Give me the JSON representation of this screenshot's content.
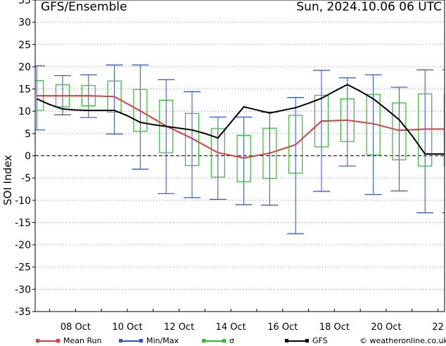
{
  "header": {
    "title": "GFS/Ensemble",
    "datetime": "Sun, 2024.10.06 06 UTC"
  },
  "colors": {
    "mean": "#e03c3c",
    "minmax": "#2a4fd6",
    "sigma": "#2ec02e",
    "gfs": "#000000"
  },
  "legend": [
    {
      "key": "mean",
      "label": "Mean Run"
    },
    {
      "key": "minmax",
      "label": "Min/Max"
    },
    {
      "key": "sigma",
      "label": "σ"
    },
    {
      "key": "gfs",
      "label": "GFS"
    }
  ],
  "copyright": "© weatheronline.co.uk",
  "chart_data": {
    "type": "line",
    "ylabel": "SOI Index",
    "ylim": [
      -35,
      35
    ],
    "y_ticks": [
      -35,
      -30,
      -25,
      -20,
      -15,
      -10,
      -5,
      0,
      5,
      10,
      15,
      20,
      25,
      30,
      35
    ],
    "x_tick_labels": [
      "08 Oct",
      "10 Oct",
      "12 Oct",
      "14 Oct",
      "16 Oct",
      "18 Oct",
      "20 Oct",
      "22"
    ],
    "x": [
      "06 Oct 12",
      "07 Oct 00",
      "07 Oct 12",
      "08 Oct 00",
      "08 Oct 12",
      "09 Oct 00",
      "09 Oct 12",
      "10 Oct 00",
      "10 Oct 12",
      "11 Oct 00",
      "11 Oct 12",
      "12 Oct 00",
      "12 Oct 12",
      "13 Oct 00",
      "13 Oct 12",
      "14 Oct 00",
      "14 Oct 12",
      "15 Oct 00",
      "15 Oct 12",
      "16 Oct 00",
      "16 Oct 12",
      "17 Oct 00",
      "17 Oct 12",
      "18 Oct 00",
      "18 Oct 12",
      "19 Oct 00",
      "19 Oct 12",
      "20 Oct 00",
      "20 Oct 12",
      "21 Oct 00",
      "21 Oct 12",
      "22 Oct 00",
      "22 Oct 12"
    ],
    "series": [
      {
        "name": "Mean Run",
        "x": [
          "06 Oct 12",
          "07 Oct 12",
          "08 Oct 12",
          "09 Oct 12",
          "10 Oct 12",
          "11 Oct 12",
          "12 Oct 12",
          "13 Oct 12",
          "14 Oct 12",
          "15 Oct 12",
          "16 Oct 12",
          "17 Oct 12",
          "18 Oct 12",
          "19 Oct 12",
          "20 Oct 12",
          "21 Oct 12",
          "22 Oct 12"
        ],
        "values": [
          13.5,
          13.5,
          13.5,
          13.3,
          10.1,
          6.7,
          3.9,
          0.7,
          -0.5,
          0.6,
          2.5,
          7.8,
          8.0,
          7.2,
          5.7,
          6.0,
          6.0
        ]
      },
      {
        "name": "GFS",
        "x": [
          "06 Oct 12",
          "07 Oct 00",
          "07 Oct 12",
          "08 Oct 00",
          "08 Oct 12",
          "09 Oct 00",
          "09 Oct 12",
          "10 Oct 00",
          "10 Oct 12",
          "11 Oct 00",
          "11 Oct 12",
          "12 Oct 00",
          "12 Oct 12",
          "13 Oct 00",
          "13 Oct 12",
          "14 Oct 00",
          "14 Oct 12",
          "15 Oct 00",
          "15 Oct 12",
          "16 Oct 00",
          "16 Oct 12",
          "17 Oct 00",
          "17 Oct 12",
          "18 Oct 00",
          "18 Oct 12",
          "19 Oct 00",
          "19 Oct 12",
          "20 Oct 00",
          "20 Oct 12",
          "21 Oct 00",
          "21 Oct 12",
          "22 Oct 00",
          "22 Oct 12"
        ],
        "values": [
          12.8,
          11.5,
          10.5,
          10.3,
          10.2,
          10.2,
          10.2,
          9.0,
          7.5,
          7.0,
          6.6,
          6.2,
          5.8,
          5.0,
          4.0,
          7.5,
          11.0,
          10.3,
          9.6,
          10.2,
          10.8,
          11.8,
          12.9,
          14.5,
          16.0,
          14.5,
          12.8,
          10.5,
          8.1,
          4.5,
          0.4,
          0.4,
          0.4
        ]
      },
      {
        "name": "Min/Max",
        "x": [
          "06 Oct 12",
          "07 Oct 12",
          "08 Oct 12",
          "09 Oct 12",
          "10 Oct 12",
          "11 Oct 12",
          "12 Oct 12",
          "13 Oct 12",
          "14 Oct 12",
          "15 Oct 12",
          "16 Oct 12",
          "17 Oct 12",
          "18 Oct 12",
          "19 Oct 12",
          "20 Oct 12",
          "21 Oct 12",
          "22 Oct 12"
        ],
        "min": [
          5.8,
          9.2,
          8.6,
          4.9,
          -3.0,
          -8.5,
          -9.4,
          -9.8,
          -11.0,
          -11.1,
          -17.5,
          -8.0,
          -2.3,
          -8.7,
          -7.9,
          -12.8,
          -12.8
        ],
        "max": [
          20.2,
          18.0,
          18.2,
          20.4,
          20.4,
          17.1,
          14.4,
          8.7,
          8.7,
          9.8,
          13.1,
          19.2,
          17.5,
          18.2,
          15.4,
          19.3,
          19.3
        ]
      },
      {
        "name": "σ",
        "x": [
          "06 Oct 12",
          "07 Oct 12",
          "08 Oct 12",
          "09 Oct 12",
          "10 Oct 12",
          "11 Oct 12",
          "12 Oct 12",
          "13 Oct 12",
          "14 Oct 12",
          "15 Oct 12",
          "16 Oct 12",
          "17 Oct 12",
          "18 Oct 12",
          "19 Oct 12",
          "20 Oct 12",
          "21 Oct 12",
          "22 Oct 12"
        ],
        "low": [
          10.2,
          11.0,
          11.2,
          9.8,
          5.5,
          0.7,
          -2.2,
          -4.8,
          -5.8,
          -5.1,
          -3.9,
          2.0,
          3.2,
          0.2,
          -0.9,
          -2.3,
          -2.3
        ],
        "high": [
          16.9,
          16.0,
          15.8,
          16.8,
          14.9,
          12.5,
          9.5,
          6.1,
          4.6,
          6.2,
          9.1,
          13.6,
          12.8,
          13.8,
          11.9,
          13.9,
          13.9
        ]
      }
    ],
    "zero_line": true,
    "grid": "horizontal dotted",
    "legend_position": "bottom"
  }
}
